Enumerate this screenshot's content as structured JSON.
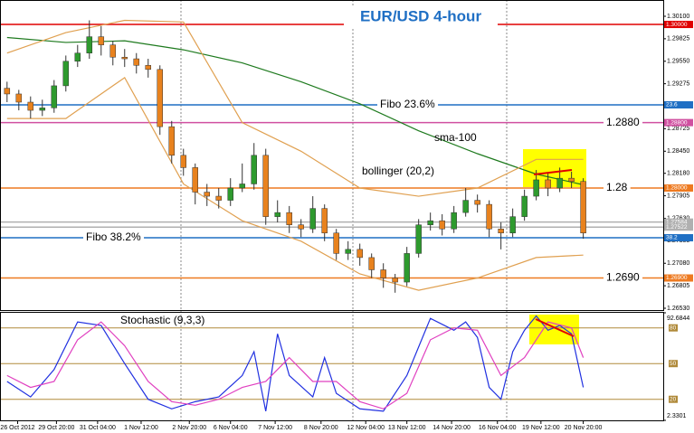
{
  "chart_data": [
    {
      "type": "candlestick",
      "title": "EUR/USD 4-hour",
      "xlim": [
        -0.6,
        55.8
      ],
      "ylim": [
        1.2653,
        1.301
      ],
      "yticks": [
        {
          "value": 1.2653,
          "label": "1.26530"
        },
        {
          "value": 1.26805,
          "label": "1.26805"
        },
        {
          "value": 1.2708,
          "label": "1.27080"
        },
        {
          "value": 1.27355,
          "label": "1.27355"
        },
        {
          "value": 1.2763,
          "label": "1.27630"
        },
        {
          "value": 1.27905,
          "label": "1.27905"
        },
        {
          "value": 1.2818,
          "label": "1.28180"
        },
        {
          "value": 1.2845,
          "label": "1.28450"
        },
        {
          "value": 1.28725,
          "label": "1.28725"
        },
        {
          "value": 1.29,
          "label": "1.29000"
        },
        {
          "value": 1.29275,
          "label": "1.29275"
        },
        {
          "value": 1.2955,
          "label": "1.29550"
        },
        {
          "value": 1.29825,
          "label": "1.29825"
        },
        {
          "value": 1.301,
          "label": "1.30100"
        }
      ],
      "up_color": "#2e9a2e",
      "down_color": "#e8821e",
      "open": [
        1.2922,
        1.2915,
        1.2905,
        1.2895,
        1.2898,
        1.2925,
        1.2955,
        1.2965,
        1.2985,
        1.2975,
        1.296,
        1.2958,
        1.295,
        1.2945,
        1.2875,
        1.284,
        1.2825,
        1.2795,
        1.279,
        1.2785,
        1.28,
        1.2805,
        1.284,
        1.2765,
        1.277,
        1.2755,
        1.275,
        1.2775,
        1.2745,
        1.272,
        1.2725,
        1.2715,
        1.27,
        1.269,
        1.2685,
        1.272,
        1.2755,
        1.276,
        1.275,
        1.277,
        1.2785,
        1.278,
        1.275,
        1.2745,
        1.2765,
        1.279,
        1.281,
        1.28,
        1.2812,
        1.2808
      ],
      "high": [
        1.293,
        1.292,
        1.2912,
        1.2908,
        1.2932,
        1.2962,
        1.2975,
        1.3005,
        1.2998,
        1.298,
        1.297,
        1.2965,
        1.2958,
        1.295,
        1.2882,
        1.2848,
        1.283,
        1.2805,
        1.28,
        1.2812,
        1.283,
        1.2855,
        1.2848,
        1.2785,
        1.2778,
        1.2762,
        1.279,
        1.278,
        1.275,
        1.2735,
        1.2732,
        1.272,
        1.2708,
        1.2695,
        1.2728,
        1.2762,
        1.277,
        1.2768,
        1.2778,
        1.28,
        1.2792,
        1.2785,
        1.2758,
        1.2775,
        1.2798,
        1.2822,
        1.2818,
        1.2825,
        1.282,
        1.2812
      ],
      "low": [
        1.2905,
        1.2895,
        1.2885,
        1.2888,
        1.2892,
        1.2918,
        1.2948,
        1.2958,
        1.2962,
        1.295,
        1.2948,
        1.294,
        1.2935,
        1.2865,
        1.283,
        1.2815,
        1.278,
        1.2778,
        1.2775,
        1.2778,
        1.2795,
        1.2798,
        1.2755,
        1.2758,
        1.2745,
        1.274,
        1.2745,
        1.2735,
        1.2712,
        1.2712,
        1.2705,
        1.269,
        1.2678,
        1.2672,
        1.268,
        1.2715,
        1.2748,
        1.2742,
        1.2745,
        1.2765,
        1.277,
        1.274,
        1.2725,
        1.274,
        1.276,
        1.2785,
        1.279,
        1.2795,
        1.28,
        1.2738
      ],
      "close": [
        1.2915,
        1.2905,
        1.2895,
        1.2898,
        1.2925,
        1.2955,
        1.2965,
        1.2985,
        1.2975,
        1.296,
        1.2958,
        1.295,
        1.2945,
        1.2875,
        1.284,
        1.2825,
        1.2795,
        1.279,
        1.2785,
        1.28,
        1.2805,
        1.284,
        1.2765,
        1.277,
        1.2755,
        1.275,
        1.2775,
        1.2745,
        1.272,
        1.2725,
        1.2715,
        1.27,
        1.269,
        1.2685,
        1.272,
        1.2755,
        1.276,
        1.275,
        1.277,
        1.2785,
        1.278,
        1.275,
        1.2745,
        1.2765,
        1.279,
        1.281,
        1.28,
        1.2812,
        1.2808,
        1.2745
      ],
      "lines": [
        {
          "color": "#1e7a1e",
          "x": [
            0,
            5,
            10,
            15,
            20,
            25,
            30,
            35,
            40,
            45,
            49
          ],
          "values": [
            1.2984,
            1.2978,
            1.298,
            1.2969,
            1.2953,
            1.293,
            1.2903,
            1.287,
            1.2842,
            1.2817,
            1.2804
          ]
        },
        {
          "color": "#e0a050",
          "x": [
            0,
            5,
            10,
            15,
            20,
            25,
            30,
            35,
            40,
            45,
            49
          ],
          "values": [
            1.2965,
            1.299,
            1.3005,
            1.3003,
            1.288,
            1.2845,
            1.28,
            1.279,
            1.28,
            1.2835,
            1.2835
          ]
        },
        {
          "color": "#e0a050",
          "x": [
            0,
            5,
            10,
            15,
            20,
            25,
            30,
            35,
            40,
            45,
            49
          ],
          "values": [
            1.2885,
            1.2885,
            1.2935,
            1.2805,
            1.276,
            1.2735,
            1.2695,
            1.2675,
            1.269,
            1.2715,
            1.2718
          ]
        }
      ],
      "levels": [
        {
          "value": 1.3,
          "color": "#e00000",
          "tag": "1.30000"
        },
        {
          "value": 1.29017,
          "color": "#1f6fc4",
          "tag": "23.6",
          "note": "Fibo  23.6%"
        },
        {
          "value": 1.288,
          "color": "#d050a0",
          "tag": "1.28800",
          "note": "1.2880"
        },
        {
          "value": 1.28,
          "color": "#ee7a20",
          "tag": "1.28000",
          "note": "1.28"
        },
        {
          "value": 1.27584,
          "color": "#b0b0b0",
          "tag": "1.27584"
        },
        {
          "value": 1.27522,
          "color": "#b0b0b0",
          "tag": "1.27522"
        },
        {
          "value": 1.27392,
          "color": "#1f6fc4",
          "tag": "38.2",
          "note": "Fibo  38.2%"
        },
        {
          "value": 1.269,
          "color": "#ee7a20",
          "tag": "1.26900",
          "note": "1.2690"
        }
      ],
      "annotations": [
        "sma-100",
        "bollinger (20,2)"
      ]
    },
    {
      "type": "line",
      "title": "Stochastic  (9,3,3)",
      "xlim": [
        -0.6,
        55.8
      ],
      "ylim": [
        2.3301,
        92.6844
      ],
      "yticks": [
        {
          "value": 92.6844,
          "label": "92.6844"
        },
        {
          "value": 2.3301,
          "label": "2.3301"
        }
      ],
      "levels": [
        80,
        50,
        20
      ],
      "level_color": "#b08a3a",
      "series": [
        {
          "color": "#2030e0",
          "x": [
            0,
            2,
            4,
            6,
            8,
            10,
            12,
            14,
            16,
            18,
            20,
            21,
            22,
            23,
            24,
            26,
            27,
            28,
            30,
            32,
            34,
            36,
            38,
            39,
            40,
            41,
            42,
            43,
            44,
            45,
            46,
            47,
            48,
            49
          ],
          "values": [
            35,
            22,
            45,
            85,
            82,
            50,
            20,
            12,
            18,
            22,
            40,
            60,
            10,
            75,
            40,
            22,
            55,
            25,
            12,
            10,
            40,
            88,
            78,
            85,
            72,
            30,
            20,
            60,
            78,
            90,
            78,
            82,
            75,
            30
          ]
        },
        {
          "color": "#e040c0",
          "x": [
            0,
            2,
            4,
            6,
            8,
            10,
            12,
            14,
            16,
            18,
            20,
            22,
            24,
            26,
            28,
            30,
            32,
            34,
            36,
            38,
            40,
            42,
            44,
            46,
            48,
            49
          ],
          "values": [
            40,
            30,
            35,
            70,
            85,
            65,
            35,
            18,
            15,
            20,
            30,
            35,
            55,
            35,
            35,
            18,
            12,
            25,
            70,
            80,
            78,
            40,
            55,
            85,
            80,
            55
          ]
        }
      ],
      "xticks": [
        {
          "value": 0.9,
          "label": "26 Oct 2012"
        },
        {
          "value": 4.2,
          "label": "29 Oct 20:00"
        },
        {
          "value": 7.7,
          "label": "31 Oct 04:00"
        },
        {
          "value": 11.4,
          "label": "1 Nov 12:00"
        },
        {
          "value": 15.5,
          "label": "2 Nov 20:00"
        },
        {
          "value": 19,
          "label": "6 Nov 04:00"
        },
        {
          "value": 22.8,
          "label": "7 Nov 12:00"
        },
        {
          "value": 26.7,
          "label": "8 Nov 20:00"
        },
        {
          "value": 30.5,
          "label": "12 Nov 04:00"
        },
        {
          "value": 34,
          "label": "13 Nov 12:00"
        },
        {
          "value": 37.8,
          "label": "14 Nov 20:00"
        },
        {
          "value": 41.7,
          "label": "16 Nov 04:00"
        },
        {
          "value": 45.4,
          "label": "19 Nov 12:00"
        },
        {
          "value": 49,
          "label": "20 Nov 20:00"
        }
      ]
    }
  ]
}
